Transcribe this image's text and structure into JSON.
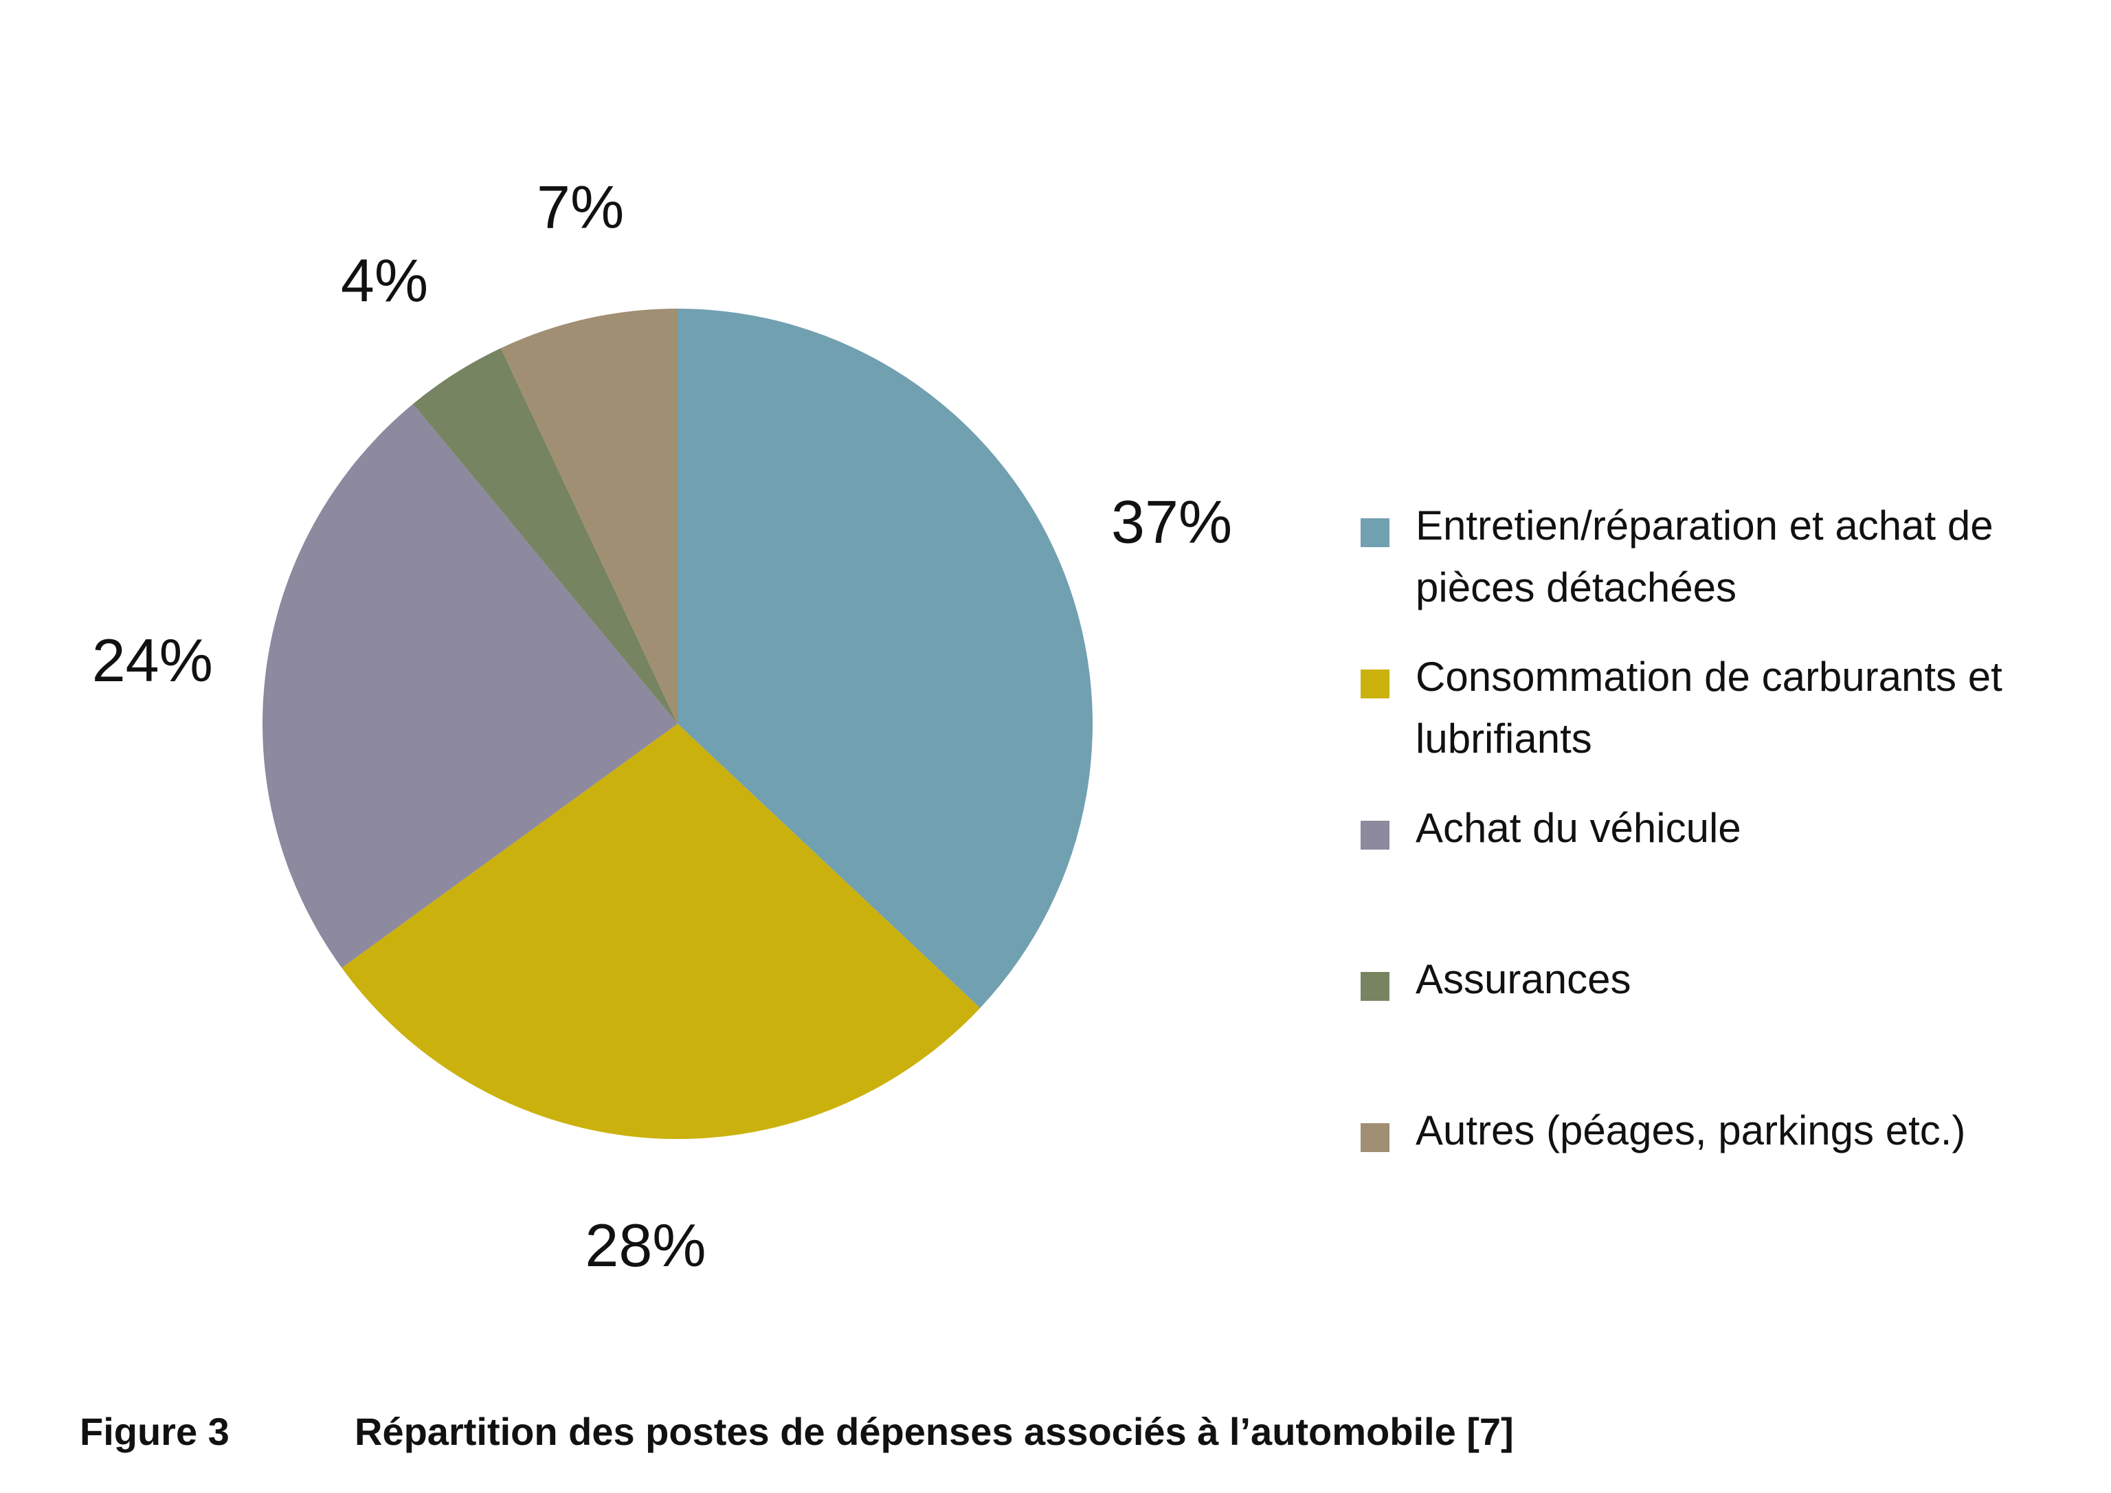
{
  "chart_data": {
    "type": "pie",
    "title": "",
    "categories": [
      "Entretien/réparation et achat de pièces détachées",
      "Consommation de carburants et lubrifiants",
      "Achat du véhicule",
      "Assurances",
      "Autres (péages, parkings etc.)"
    ],
    "values": [
      37,
      28,
      24,
      4,
      7
    ],
    "data_labels": [
      "37%",
      "28%",
      "24%",
      "4%",
      "7%"
    ],
    "colors": [
      "#71a0b1",
      "#cbb10d",
      "#8d899f",
      "#778461",
      "#a08f72"
    ],
    "legend_position": "right"
  },
  "caption": {
    "figure_label": "Figure 3",
    "title": "Répartition des postes de dépenses associés à l’automobile [7]"
  }
}
